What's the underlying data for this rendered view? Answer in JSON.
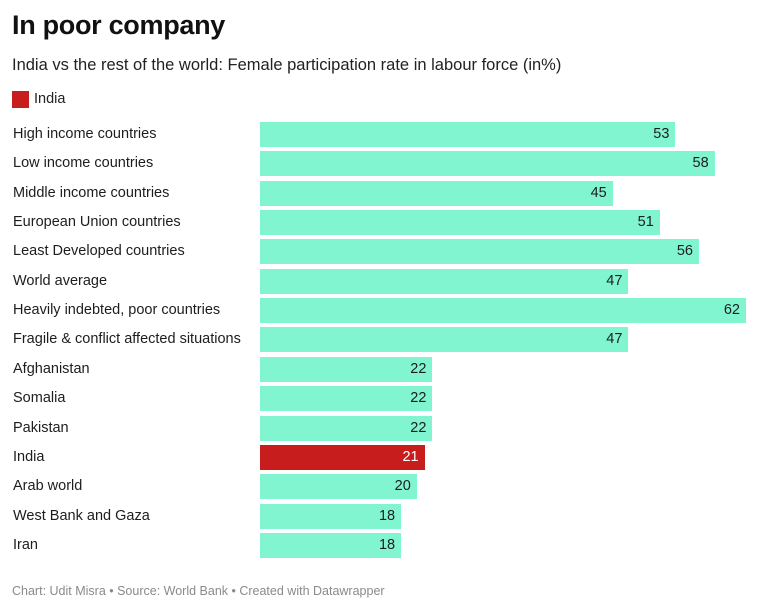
{
  "colors": {
    "default_bar": "#80f5cf",
    "highlight_bar": "#c71e1d",
    "default_value_text": "#1d1d1d",
    "highlight_value_text": "#ffffff"
  },
  "chart_data": {
    "type": "bar",
    "orientation": "horizontal",
    "title": "In poor company",
    "subtitle": "India vs the rest of the world: Female participation rate in labour force (in%)",
    "legend": {
      "items": [
        {
          "label": "India",
          "color": "#c71e1d"
        }
      ],
      "placement": "top-left"
    },
    "categories": [
      "High income countries",
      "Low income countries",
      "Middle income countries",
      "European Union countries",
      "Least Developed countries",
      "World average",
      "Heavily indebted, poor countries",
      "Fragile & conflict affected situations",
      "Afghanistan",
      "Somalia",
      "Pakistan",
      "India",
      "Arab world",
      "West Bank and Gaza",
      "Iran"
    ],
    "values": [
      53,
      58,
      45,
      51,
      56,
      47,
      62,
      47,
      22,
      22,
      22,
      21,
      20,
      18,
      18
    ],
    "highlight": [
      "India"
    ],
    "xlim": [
      0,
      62
    ],
    "grid": false
  },
  "footer": {
    "text": "Chart: Udit Misra • Source: World Bank • Created with Datawrapper"
  }
}
